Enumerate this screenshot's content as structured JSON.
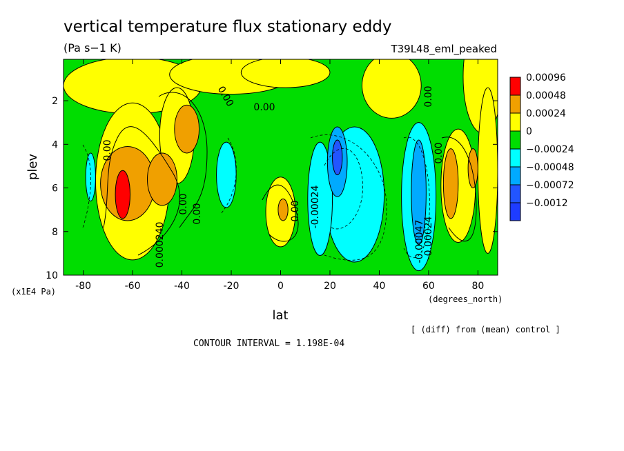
{
  "chart_data": {
    "type": "heatmap",
    "title": "vertical temperature flux stationary eddy",
    "units": "(Pa s−1 K)",
    "run_label": "T39L48_eml_peaked",
    "xlabel": "lat",
    "x_units": "(degrees_north)",
    "ylabel": "plev",
    "y_units": "(x1E4 Pa)",
    "xlim": [
      -88,
      88
    ],
    "ylim": [
      10,
      0.1
    ],
    "x_ticks": [
      "-80",
      "-60",
      "-40",
      "-20",
      "0",
      "20",
      "40",
      "60",
      "80"
    ],
    "y_ticks": [
      "2",
      "4",
      "6",
      "8",
      "10"
    ],
    "legend": {
      "placement": "right",
      "levels": [
        "0.00096",
        "0.00048",
        "0.00024",
        "0",
        "−0.00024",
        "−0.00048",
        "−0.00072",
        "−0.0012"
      ],
      "colors": [
        "#ff0000",
        "#f0a000",
        "#ffff00",
        "#00dd00",
        "#00ffff",
        "#00aaff",
        "#2255ff",
        "#1e3cff"
      ]
    },
    "background_color": "#00dd00",
    "contour_labels": [
      "0.00",
      "0.00",
      "0.00",
      "0.000240",
      "0.00",
      "0.00",
      "0.00",
      "-0.00024",
      "0.00",
      "0.00",
      "-0.00047",
      "-0.00024"
    ],
    "blobs": [
      {
        "level": 1,
        "lat": -60,
        "plev": 1.3,
        "rlat": 28,
        "rplev": 1.3
      },
      {
        "level": 1,
        "lat": -20,
        "plev": 0.8,
        "rlat": 25,
        "rplev": 0.9
      },
      {
        "level": 1,
        "lat": 2,
        "plev": 0.7,
        "rlat": 18,
        "rplev": 0.7
      },
      {
        "level": 1,
        "lat": 45,
        "plev": 1.3,
        "rlat": 12,
        "rplev": 1.5
      },
      {
        "level": 1,
        "lat": 82,
        "plev": 0.9,
        "rlat": 8,
        "rplev": 2.6
      },
      {
        "level": 1,
        "lat": -60,
        "plev": 5.7,
        "rlat": 15,
        "rplev": 3.6
      },
      {
        "level": 1,
        "lat": -42,
        "plev": 3.6,
        "rlat": 7,
        "rplev": 2.2
      },
      {
        "level": 1,
        "lat": 0,
        "plev": 7.1,
        "rlat": 6,
        "rplev": 1.6
      },
      {
        "level": 1,
        "lat": 72,
        "plev": 5.9,
        "rlat": 7,
        "rplev": 2.6
      },
      {
        "level": 1,
        "lat": 84,
        "plev": 5.2,
        "rlat": 4,
        "rplev": 3.8
      },
      {
        "level": 2,
        "lat": -62,
        "plev": 5.8,
        "rlat": 11,
        "rplev": 1.7
      },
      {
        "level": 2,
        "lat": -48,
        "plev": 5.6,
        "rlat": 6,
        "rplev": 1.2
      },
      {
        "level": 2,
        "lat": -38,
        "plev": 3.3,
        "rlat": 5,
        "rplev": 1.1
      },
      {
        "level": 2,
        "lat": 1,
        "plev": 7.0,
        "rlat": 2,
        "rplev": 0.5
      },
      {
        "level": 2,
        "lat": 69,
        "plev": 5.8,
        "rlat": 3,
        "rplev": 1.6
      },
      {
        "level": 2,
        "lat": 78,
        "plev": 5.1,
        "rlat": 2,
        "rplev": 0.9
      },
      {
        "level": 3,
        "lat": -64,
        "plev": 6.3,
        "rlat": 3,
        "rplev": 1.1
      },
      {
        "level": 4,
        "lat": -77,
        "plev": 5.5,
        "rlat": 2,
        "rplev": 1.1
      },
      {
        "level": 4,
        "lat": -22,
        "plev": 5.4,
        "rlat": 4,
        "rplev": 1.5
      },
      {
        "level": 4,
        "lat": 30,
        "plev": 6.3,
        "rlat": 12,
        "rplev": 3.1
      },
      {
        "level": 4,
        "lat": 16,
        "plev": 6.5,
        "rlat": 5,
        "rplev": 2.6
      },
      {
        "level": 4,
        "lat": 56,
        "plev": 6.4,
        "rlat": 7,
        "rplev": 3.4
      },
      {
        "level": 5,
        "lat": 23,
        "plev": 4.8,
        "rlat": 4,
        "rplev": 1.6
      },
      {
        "level": 5,
        "lat": 56,
        "plev": 6.2,
        "rlat": 3,
        "rplev": 2.4
      },
      {
        "level": 6,
        "lat": 23,
        "plev": 4.6,
        "rlat": 2,
        "rplev": 0.8
      }
    ]
  },
  "footer": {
    "contour_interval": "CONTOUR INTERVAL = 1.198E-04",
    "diff_note": "[ (diff) from (mean) control ]"
  }
}
